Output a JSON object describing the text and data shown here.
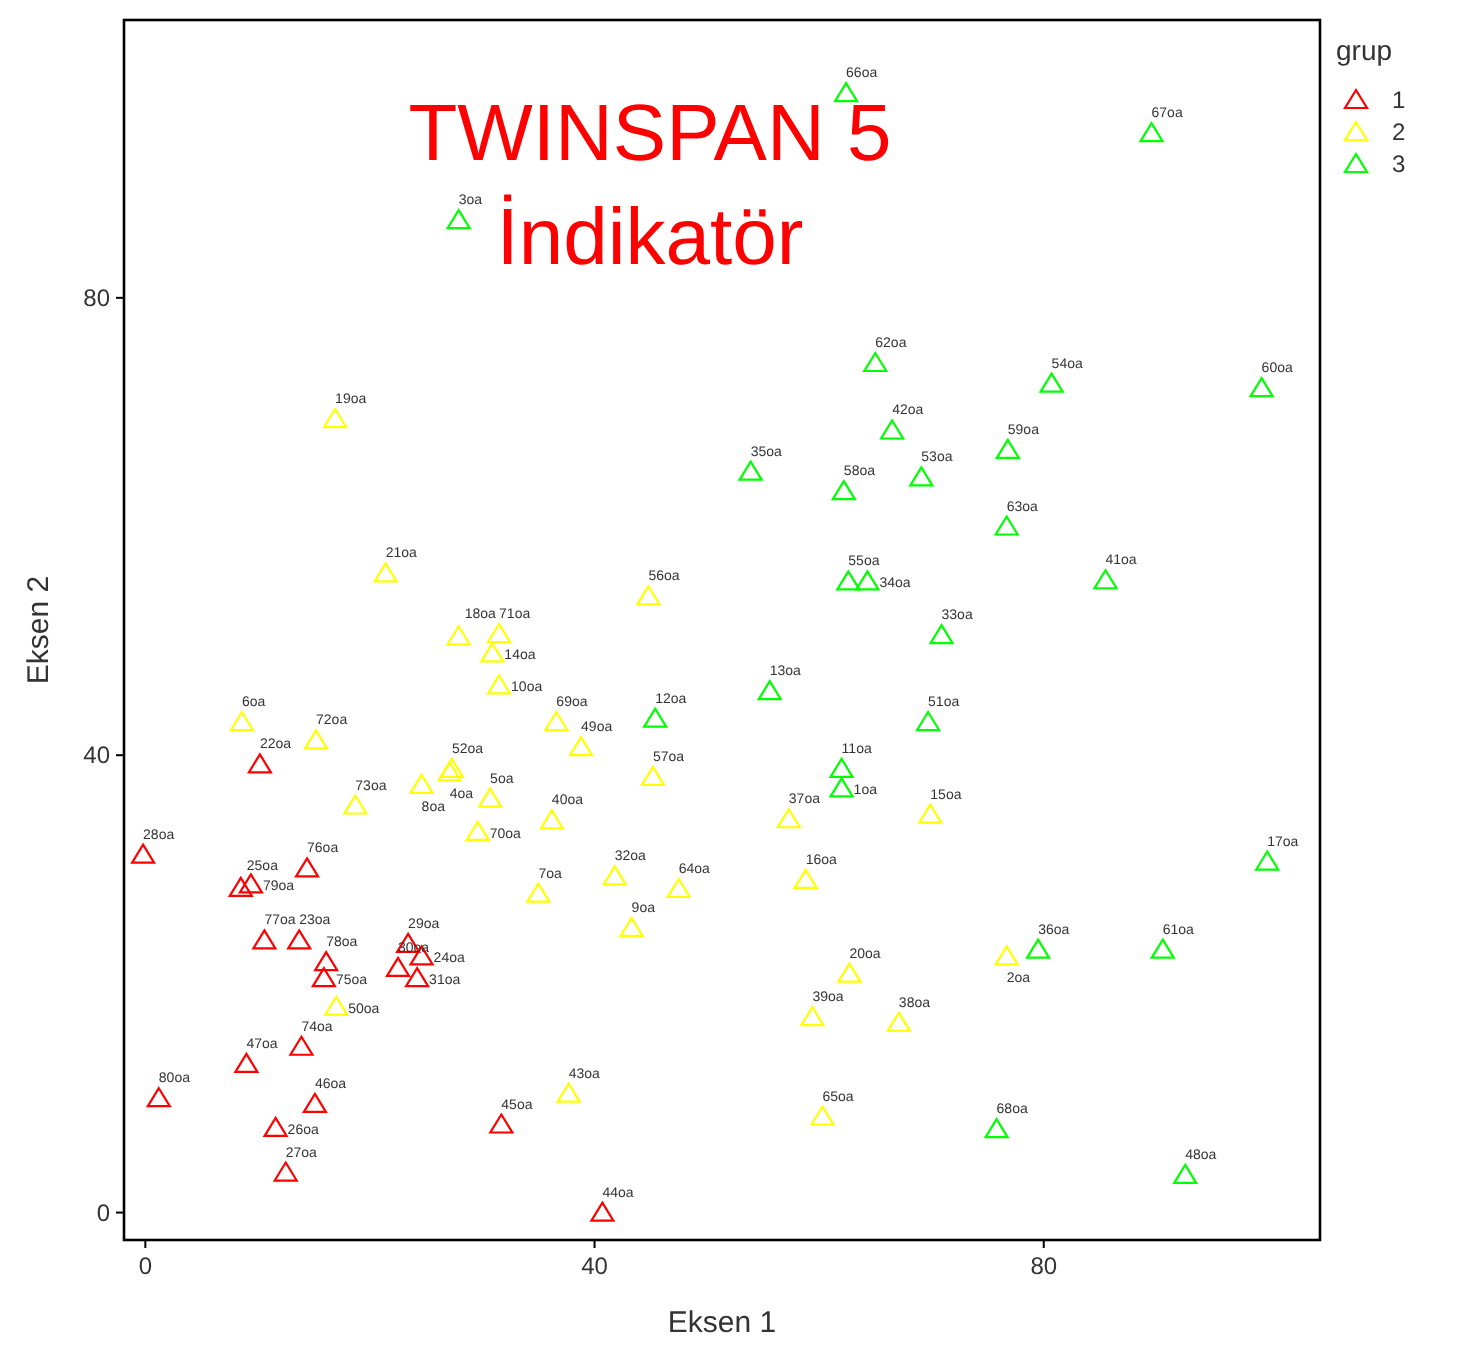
{
  "chart_data": {
    "type": "scatter",
    "title": "TWINSPAN 5\nİndikatör",
    "xlabel": "Eksen 1",
    "ylabel": "Eksen 2",
    "legend_title": "grup",
    "legend": "top right",
    "marker": "triangle",
    "grid": false,
    "xlim": [
      -1.9,
      104.6
    ],
    "ylim": [
      -2.4,
      104.3
    ],
    "xticks": [
      0,
      40,
      80
    ],
    "yticks": [
      0,
      40,
      80
    ],
    "series": [
      {
        "name": "1",
        "color": "#ff0000",
        "x": [
          -0.2,
          1.2,
          10.2,
          8.5,
          9.4,
          14.4,
          10.6,
          13.7,
          16.1,
          15.9,
          9.0,
          13.9,
          15.1,
          11.6,
          12.5,
          23.4,
          22.5,
          24.6,
          24.2,
          31.7,
          40.7
        ],
        "values": [
          31.3,
          10.0,
          39.2,
          28.4,
          28.7,
          30.1,
          23.8,
          23.8,
          21.9,
          20.5,
          13.0,
          14.5,
          9.5,
          7.4,
          3.5,
          23.5,
          21.4,
          22.4,
          20.5,
          7.7,
          0
        ]
      },
      {
        "name": "2",
        "color": "#ffff00",
        "x": [
          8.6,
          15.2,
          18.7,
          24.6,
          27.3,
          27.1,
          27.9,
          31.5,
          30.9,
          31.5,
          30.7,
          29.6,
          36.6,
          38.8,
          44.8,
          45.2,
          36.2,
          41.8,
          47.5,
          35.0,
          43.3,
          17.0,
          37.7,
          16.9,
          21.4,
          57.3,
          69.9,
          58.8,
          62.7,
          76.7,
          59.4,
          67.1,
          60.3
        ],
        "values": [
          42.9,
          41.3,
          35.6,
          37.4,
          38.8,
          38.5,
          50.4,
          50.6,
          48.9,
          46.1,
          36.2,
          33.3,
          42.9,
          40.7,
          53.9,
          38.1,
          34.3,
          29.4,
          28.3,
          27.9,
          24.9,
          18.0,
          10.4,
          69.4,
          55.9,
          34.4,
          34.8,
          29.1,
          20.9,
          22.4,
          17.1,
          16.6,
          8.4
        ]
      },
      {
        "name": "3",
        "color": "#00ff00",
        "x": [
          45.4,
          27.9,
          62.6,
          64.3,
          85.5,
          70.9,
          55.6,
          69.7,
          62.0,
          62.0,
          99.9,
          79.5,
          90.6,
          75.8,
          92.6,
          62.4,
          89.6,
          65.0,
          80.7,
          99.4,
          66.5,
          76.8,
          53.9,
          62.2,
          69.1,
          76.7
        ],
        "values": [
          43.2,
          86.8,
          55.2,
          55.2,
          55.3,
          50.5,
          45.6,
          42.9,
          38.8,
          37.1,
          30.7,
          23.0,
          23.0,
          7.3,
          3.3,
          97.9,
          94.4,
          74.3,
          72.5,
          72.1,
          68.4,
          66.7,
          64.8,
          63.1,
          64.3,
          60.0
        ]
      }
    ],
    "annotations": [
      {
        "text": "28oa",
        "x": -0.2,
        "y": 31.3
      },
      {
        "text": "80oa",
        "x": 1.2,
        "y": 10.0
      },
      {
        "text": "22oa",
        "x": 10.2,
        "y": 39.2
      },
      {
        "text": "25oa",
        "x": 8.5,
        "y": 28.4
      },
      {
        "text": "79oa",
        "x": 9.4,
        "y": 28.7
      },
      {
        "text": "76oa",
        "x": 14.4,
        "y": 30.1
      },
      {
        "text": "77oa",
        "x": 10.6,
        "y": 23.8
      },
      {
        "text": "23oa",
        "x": 13.7,
        "y": 23.8
      },
      {
        "text": "78oa",
        "x": 16.1,
        "y": 21.9
      },
      {
        "text": "75oa",
        "x": 15.9,
        "y": 20.5
      },
      {
        "text": "47oa",
        "x": 9.0,
        "y": 13.0
      },
      {
        "text": "74oa",
        "x": 13.9,
        "y": 14.5
      },
      {
        "text": "46oa",
        "x": 15.1,
        "y": 9.5
      },
      {
        "text": "26oa",
        "x": 11.6,
        "y": 7.4
      },
      {
        "text": "27oa",
        "x": 12.5,
        "y": 3.5
      },
      {
        "text": "29oa",
        "x": 23.4,
        "y": 23.5
      },
      {
        "text": "30oa",
        "x": 22.5,
        "y": 21.4
      },
      {
        "text": "24oa",
        "x": 24.6,
        "y": 22.4
      },
      {
        "text": "31oa",
        "x": 24.2,
        "y": 20.5
      },
      {
        "text": "45oa",
        "x": 31.7,
        "y": 7.7
      },
      {
        "text": "44oa",
        "x": 40.7,
        "y": 0
      },
      {
        "text": "6oa",
        "x": 8.6,
        "y": 42.9
      },
      {
        "text": "72oa",
        "x": 15.2,
        "y": 41.3
      },
      {
        "text": "73oa",
        "x": 18.7,
        "y": 35.6
      },
      {
        "text": "8oa",
        "x": 24.6,
        "y": 37.4
      },
      {
        "text": "52oa",
        "x": 27.3,
        "y": 38.8
      },
      {
        "text": "4oa",
        "x": 27.1,
        "y": 38.5
      },
      {
        "text": "18oa",
        "x": 27.9,
        "y": 50.4
      },
      {
        "text": "71oa",
        "x": 31.5,
        "y": 50.6
      },
      {
        "text": "14oa",
        "x": 30.9,
        "y": 48.9
      },
      {
        "text": "10oa",
        "x": 31.5,
        "y": 46.1
      },
      {
        "text": "5oa",
        "x": 30.7,
        "y": 36.2
      },
      {
        "text": "70oa",
        "x": 29.6,
        "y": 33.3
      },
      {
        "text": "69oa",
        "x": 36.6,
        "y": 42.9
      },
      {
        "text": "49oa",
        "x": 38.8,
        "y": 40.7
      },
      {
        "text": "56oa",
        "x": 44.8,
        "y": 53.9
      },
      {
        "text": "57oa",
        "x": 45.2,
        "y": 38.1
      },
      {
        "text": "40oa",
        "x": 36.2,
        "y": 34.3
      },
      {
        "text": "32oa",
        "x": 41.8,
        "y": 29.4
      },
      {
        "text": "64oa",
        "x": 47.5,
        "y": 28.3
      },
      {
        "text": "7oa",
        "x": 35.0,
        "y": 27.9
      },
      {
        "text": "9oa",
        "x": 43.3,
        "y": 24.9
      },
      {
        "text": "50oa",
        "x": 17.0,
        "y": 18.0
      },
      {
        "text": "43oa",
        "x": 37.7,
        "y": 10.4
      },
      {
        "text": "19oa",
        "x": 16.9,
        "y": 69.4
      },
      {
        "text": "21oa",
        "x": 21.4,
        "y": 55.9
      },
      {
        "text": "37oa",
        "x": 57.3,
        "y": 34.4
      },
      {
        "text": "15oa",
        "x": 69.9,
        "y": 34.8
      },
      {
        "text": "16oa",
        "x": 58.8,
        "y": 29.1
      },
      {
        "text": "20oa",
        "x": 62.7,
        "y": 20.9
      },
      {
        "text": "2oa",
        "x": 76.7,
        "y": 22.4
      },
      {
        "text": "39oa",
        "x": 59.4,
        "y": 17.1
      },
      {
        "text": "38oa",
        "x": 67.1,
        "y": 16.6
      },
      {
        "text": "65oa",
        "x": 60.3,
        "y": 8.4
      },
      {
        "text": "12oa",
        "x": 45.4,
        "y": 43.2
      },
      {
        "text": "3oa",
        "x": 27.9,
        "y": 86.8
      },
      {
        "text": "55oa",
        "x": 62.6,
        "y": 55.2
      },
      {
        "text": "34oa",
        "x": 64.3,
        "y": 55.2
      },
      {
        "text": "41oa",
        "x": 85.5,
        "y": 55.3
      },
      {
        "text": "33oa",
        "x": 70.9,
        "y": 50.5
      },
      {
        "text": "13oa",
        "x": 55.6,
        "y": 45.6
      },
      {
        "text": "51oa",
        "x": 69.7,
        "y": 42.9
      },
      {
        "text": "11oa",
        "x": 62.0,
        "y": 38.8
      },
      {
        "text": "1oa",
        "x": 62.0,
        "y": 37.1
      },
      {
        "text": "17oa",
        "x": 99.9,
        "y": 30.7
      },
      {
        "text": "36oa",
        "x": 79.5,
        "y": 23.0
      },
      {
        "text": "61oa",
        "x": 90.6,
        "y": 23.0
      },
      {
        "text": "68oa",
        "x": 75.8,
        "y": 7.3
      },
      {
        "text": "48oa",
        "x": 92.6,
        "y": 3.3
      },
      {
        "text": "66oa",
        "x": 62.4,
        "y": 97.9
      },
      {
        "text": "67oa",
        "x": 89.6,
        "y": 94.4
      },
      {
        "text": "62oa",
        "x": 65.0,
        "y": 74.3
      },
      {
        "text": "54oa",
        "x": 80.7,
        "y": 72.5
      },
      {
        "text": "60oa",
        "x": 99.4,
        "y": 72.1
      },
      {
        "text": "42oa",
        "x": 66.5,
        "y": 68.4
      },
      {
        "text": "59oa",
        "x": 76.8,
        "y": 66.7
      },
      {
        "text": "35oa",
        "x": 53.9,
        "y": 64.8
      },
      {
        "text": "58oa",
        "x": 62.2,
        "y": 63.1
      },
      {
        "text": "53oa",
        "x": 69.1,
        "y": 64.3
      },
      {
        "text": "63oa",
        "x": 76.7,
        "y": 60.0
      }
    ]
  }
}
